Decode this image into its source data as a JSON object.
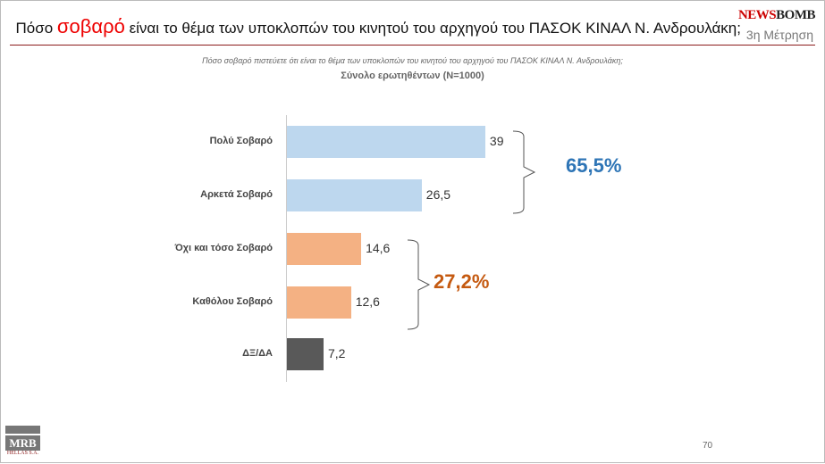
{
  "header": {
    "title_pre": "Πόσο",
    "title_highlight": "σοβαρό",
    "title_post": "είναι το θέμα των υποκλοπών του κινητού του αρχηγού του ΠΑΣΟΚ ΚΙΝΑΛ Ν. Ανδρουλάκη;",
    "measurement": "3η Μέτρηση",
    "logo_a": "NEWS",
    "logo_b": "BOMB"
  },
  "chart_data": {
    "type": "bar",
    "orientation": "horizontal",
    "title": "Πόσο σοβαρό πιστεύετε ότι είναι το θέμα των υποκλοπών του κινητού του αρχηγού του ΠΑΣΟΚ ΚΙΝΑΛ Ν. Ανδρουλάκη;",
    "subtitle": "Σύνολο ερωτηθέντων (N=1000)",
    "categories": [
      "Πολύ Σοβαρό",
      "Αρκετά Σοβαρό",
      "Όχι και τόσο Σοβαρό",
      "Καθόλου Σοβαρό",
      "ΔΞ/ΔΑ"
    ],
    "values": [
      39,
      26.5,
      14.6,
      12.6,
      7.2
    ],
    "value_labels": [
      "39",
      "26,5",
      "14,6",
      "12,6",
      "7,2"
    ],
    "colors": [
      "#bdd7ee",
      "#bdd7ee",
      "#f4b183",
      "#f4b183",
      "#595959"
    ],
    "groups": [
      {
        "label": "65,5%",
        "color": "#2e75b6"
      },
      {
        "label": "27,2%",
        "color": "#c55a11"
      }
    ]
  },
  "footer": {
    "page": "70",
    "logo": "MRB",
    "logo_sub": "HELLAS S.A."
  }
}
